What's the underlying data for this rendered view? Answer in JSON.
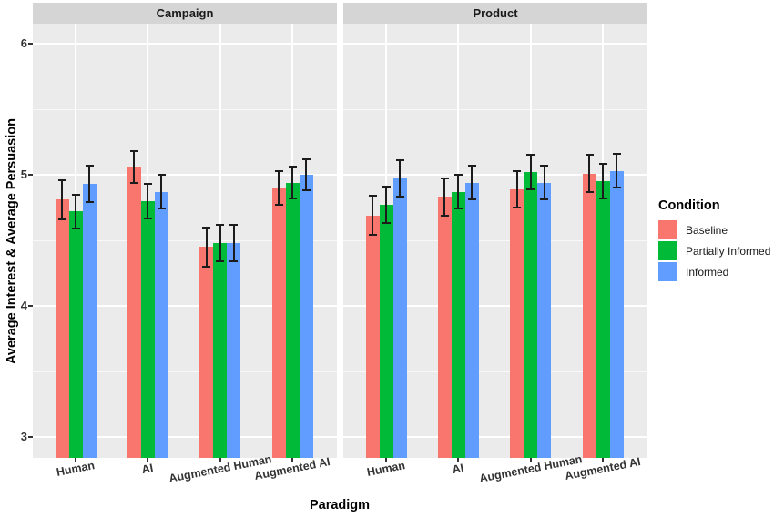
{
  "figure": {
    "y_axis_title": "Average Interest & Average Persuasion",
    "x_axis_title": "Paradigm",
    "legend_title": "Condition"
  },
  "chart_data": {
    "type": "bar",
    "subtype": "grouped-faceted-with-error-bars",
    "title": "",
    "xlabel": "Paradigm",
    "ylabel": "Average Interest & Average Persuasion",
    "y_ticks": [
      3,
      4,
      5,
      6
    ],
    "y_minor_ticks": [
      3.5,
      4.5,
      5.5
    ],
    "y_axis_range": [
      2.84,
      6.15
    ],
    "grid": true,
    "legend": {
      "title": "Condition",
      "position": "right"
    },
    "categories": [
      "Human",
      "AI",
      "Augmented Human",
      "Augmented AI"
    ],
    "series_names": [
      "Baseline",
      "Partially Informed",
      "Informed"
    ],
    "colors": {
      "Baseline": "#F8766D",
      "Partially Informed": "#00BA38",
      "Informed": "#619CFF"
    },
    "panel_background": "#EBEBEB",
    "strip_background": "#D5D5D5",
    "error_bar_color": "#1c1c1c",
    "facets": [
      {
        "label": "Campaign",
        "series": [
          {
            "name": "Baseline",
            "color": "#F8766D",
            "values": [
              4.81,
              5.06,
              4.45,
              4.9
            ],
            "errors": [
              0.15,
              0.12,
              0.15,
              0.13
            ]
          },
          {
            "name": "Partially Informed",
            "color": "#00BA38",
            "values": [
              4.72,
              4.8,
              4.48,
              4.94
            ],
            "errors": [
              0.13,
              0.13,
              0.14,
              0.12
            ]
          },
          {
            "name": "Informed",
            "color": "#619CFF",
            "values": [
              4.93,
              4.87,
              4.48,
              5.0
            ],
            "errors": [
              0.14,
              0.13,
              0.14,
              0.12
            ]
          }
        ]
      },
      {
        "label": "Product",
        "series": [
          {
            "name": "Baseline",
            "color": "#F8766D",
            "values": [
              4.69,
              4.83,
              4.89,
              5.01
            ],
            "errors": [
              0.15,
              0.14,
              0.14,
              0.14
            ]
          },
          {
            "name": "Partially Informed",
            "color": "#00BA38",
            "values": [
              4.77,
              4.87,
              5.02,
              4.95
            ],
            "errors": [
              0.14,
              0.13,
              0.13,
              0.13
            ]
          },
          {
            "name": "Informed",
            "color": "#619CFF",
            "values": [
              4.97,
              4.94,
              4.94,
              5.03
            ],
            "errors": [
              0.14,
              0.13,
              0.13,
              0.13
            ]
          }
        ]
      }
    ]
  }
}
